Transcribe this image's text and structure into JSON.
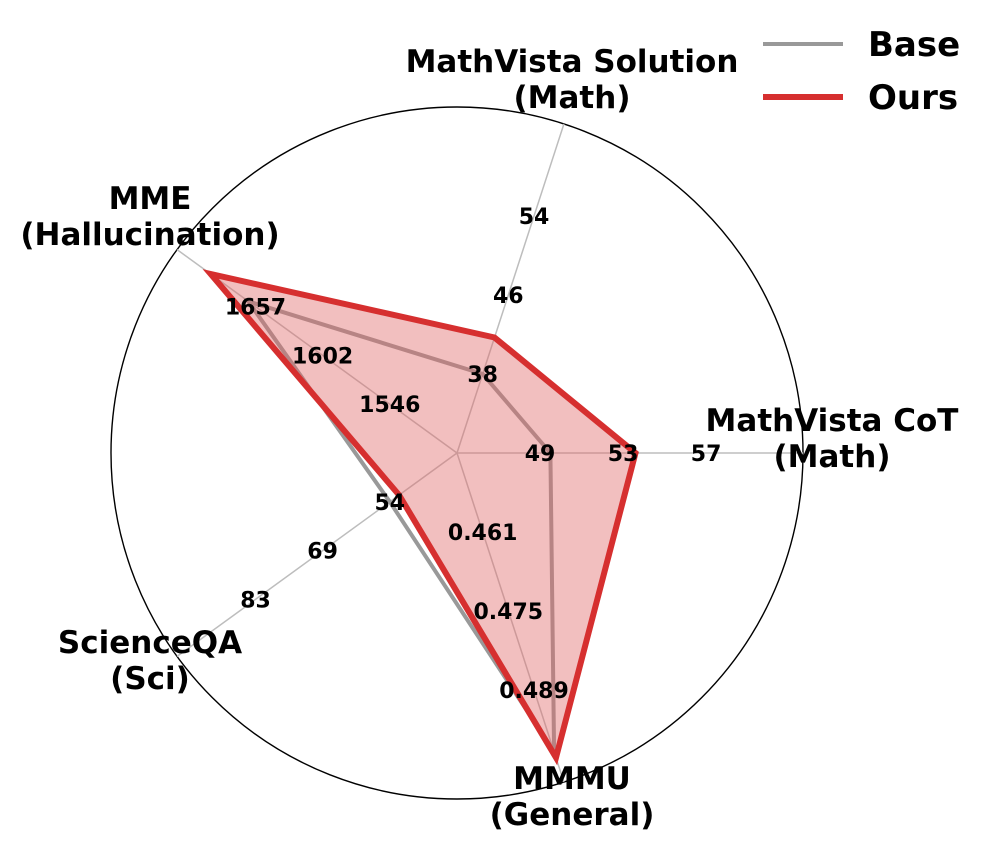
{
  "chart_data": {
    "type": "radar",
    "axes": [
      {
        "label_lines": [
          "MathVista CoT",
          "(Math)"
        ],
        "ticks": [
          "49",
          "53",
          "57"
        ],
        "tick_values": [
          49,
          53,
          57
        ]
      },
      {
        "label_lines": [
          "MathVista Solution",
          "(Math)"
        ],
        "ticks": [
          "38",
          "46",
          "54"
        ],
        "tick_values": [
          38,
          46,
          54
        ]
      },
      {
        "label_lines": [
          "MME",
          "(Hallucination)"
        ],
        "ticks": [
          "1546",
          "1602",
          "1657"
        ],
        "tick_values": [
          1546,
          1602,
          1657
        ]
      },
      {
        "label_lines": [
          "ScienceQA",
          "(Sci)"
        ],
        "ticks": [
          "54",
          "69",
          "83"
        ],
        "tick_values": [
          54,
          69,
          83
        ]
      },
      {
        "label_lines": [
          "MMMU",
          "(General)"
        ],
        "ticks": [
          "0.461",
          "0.475",
          "0.489"
        ],
        "tick_values": [
          0.461,
          0.475,
          0.489
        ]
      }
    ],
    "series": [
      {
        "name": "Base",
        "color": "#999999",
        "fill": false,
        "values": [
          49.5,
          38,
          1663,
          54,
          0.5
        ]
      },
      {
        "name": "Ours",
        "color": "#d62f2f",
        "fill": true,
        "fill_color": "#e06666",
        "fill_opacity": 0.42,
        "values": [
          53.6,
          41.7,
          1694,
          52,
          0.501
        ]
      }
    ],
    "legend_placement": "top-right",
    "grid": true
  }
}
